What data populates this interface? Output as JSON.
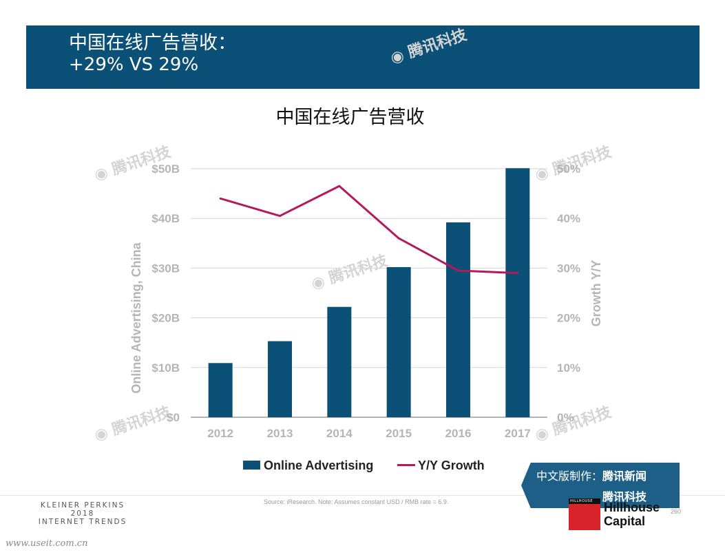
{
  "header": {
    "line1": "中国在线广告营收：",
    "line2": "+29% VS 29%"
  },
  "chart_data": {
    "type": "bar",
    "title": "中国在线广告营收",
    "categories": [
      "2012",
      "2013",
      "2014",
      "2015",
      "2016",
      "2017"
    ],
    "series": [
      {
        "name": "Online Advertising",
        "kind": "bar",
        "axis": "left",
        "color": "#0b5077",
        "values": [
          10.9,
          15.3,
          22.2,
          30.2,
          39.2,
          50.1
        ]
      },
      {
        "name": "Y/Y Growth",
        "kind": "line",
        "axis": "right",
        "color": "#b5195b",
        "values": [
          44,
          40.5,
          46.5,
          36,
          29.5,
          29
        ]
      }
    ],
    "ylabel": "Online Advertising, China",
    "y2label": "Growth Y/Y",
    "ylim": [
      0,
      50
    ],
    "y2lim": [
      0,
      50
    ],
    "yticks": [
      "$0",
      "$10B",
      "$20B",
      "$30B",
      "$40B",
      "$50B"
    ],
    "y2ticks": [
      "0%",
      "10%",
      "20%",
      "30%",
      "40%",
      "50%"
    ],
    "grid": true,
    "legend_position": "bottom"
  },
  "watermark": "腾讯科技",
  "source": "Source: iResearch.  Note: Assumes constant USD / RMB rate = 6.9.",
  "footer": {
    "brand_line1": "KLEINER PERKINS",
    "brand_line2": "2018",
    "brand_line3": "INTERNET TRENDS",
    "page_number": "260",
    "url": "www.useit.com.cn"
  },
  "cn_banner": {
    "prefix": "中文版制作：",
    "brand1": "腾讯新闻",
    "brand2": "腾讯科技"
  },
  "hillhouse": {
    "small": "HILLHOUSE",
    "line1": "Hillhouse",
    "line2": "Capital"
  }
}
